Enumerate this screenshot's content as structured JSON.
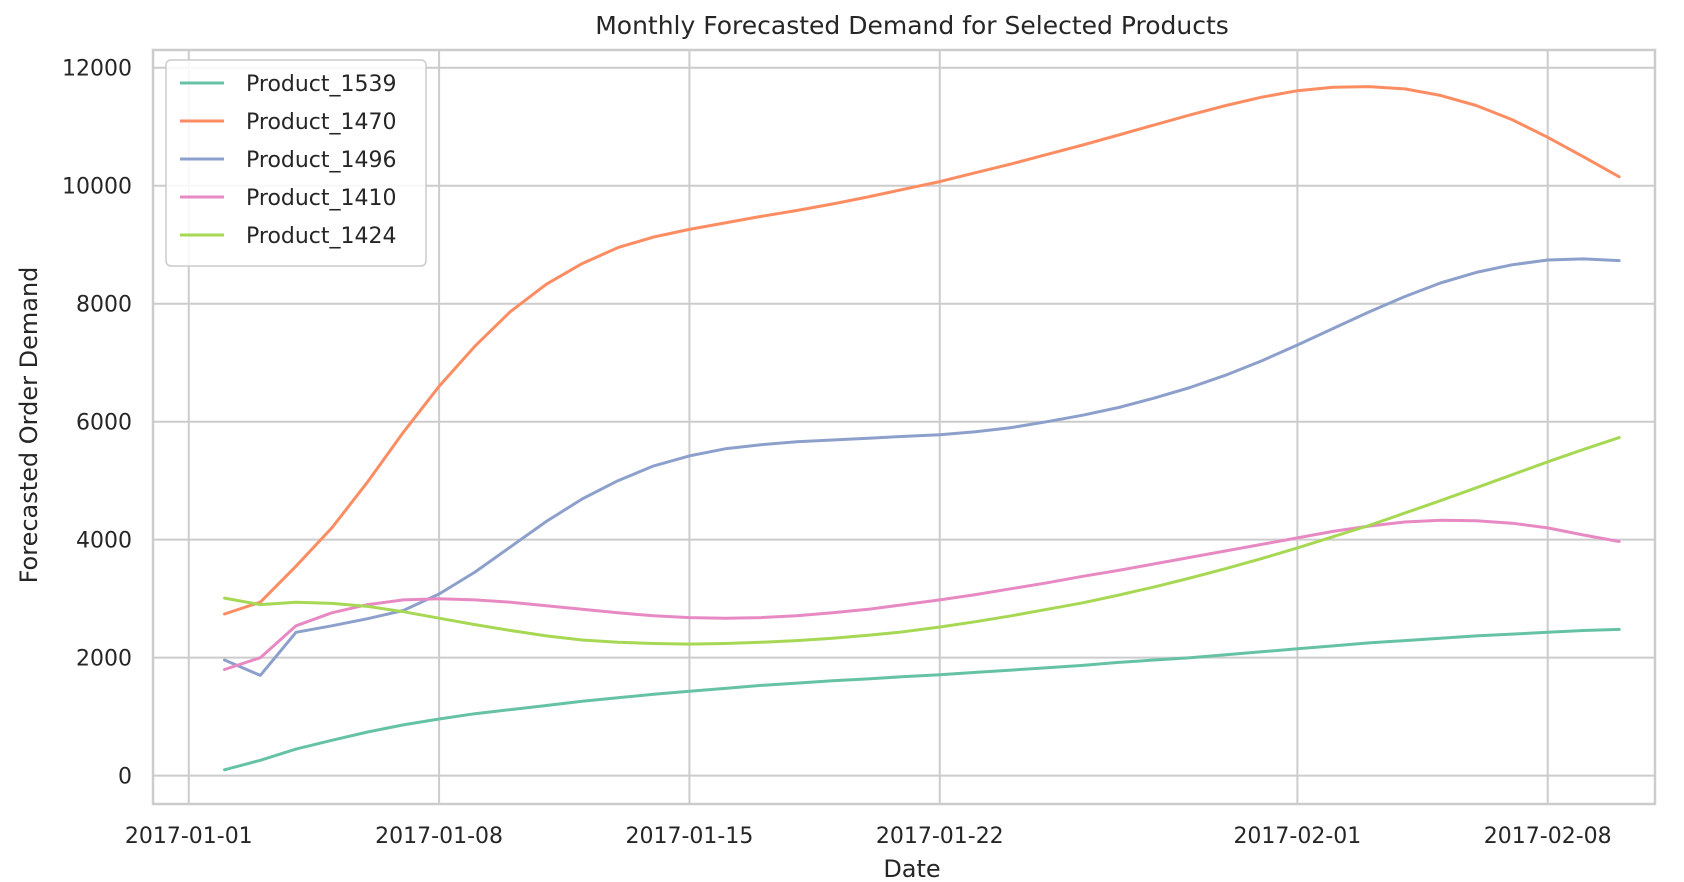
{
  "chart_data": {
    "type": "line",
    "title": "Monthly Forecasted Demand for Selected Products",
    "xlabel": "Date",
    "ylabel": "Forecasted Order Demand",
    "xlim": [
      "2016-12-31",
      "2017-02-11"
    ],
    "ylim": [
      -480,
      12300
    ],
    "grid": true,
    "legend_position": "upper-left",
    "x_ticks": [
      "2017-01-01",
      "2017-01-08",
      "2017-01-15",
      "2017-01-22",
      "2017-02-01",
      "2017-02-08"
    ],
    "y_ticks": [
      0,
      2000,
      4000,
      6000,
      8000,
      10000,
      12000
    ],
    "x": [
      "2017-01-02",
      "2017-01-03",
      "2017-01-04",
      "2017-01-05",
      "2017-01-06",
      "2017-01-07",
      "2017-01-08",
      "2017-01-09",
      "2017-01-10",
      "2017-01-11",
      "2017-01-12",
      "2017-01-13",
      "2017-01-14",
      "2017-01-15",
      "2017-01-16",
      "2017-01-17",
      "2017-01-18",
      "2017-01-19",
      "2017-01-20",
      "2017-01-21",
      "2017-01-22",
      "2017-01-23",
      "2017-01-24",
      "2017-01-25",
      "2017-01-26",
      "2017-01-27",
      "2017-01-28",
      "2017-01-29",
      "2017-01-30",
      "2017-01-31",
      "2017-02-01",
      "2017-02-02",
      "2017-02-03",
      "2017-02-04",
      "2017-02-05",
      "2017-02-06",
      "2017-02-07",
      "2017-02-08",
      "2017-02-09",
      "2017-02-10"
    ],
    "series": [
      {
        "name": "Product_1539",
        "color": "#66c2a5",
        "values": [
          100,
          260,
          450,
          600,
          740,
          860,
          960,
          1050,
          1120,
          1190,
          1260,
          1320,
          1380,
          1430,
          1480,
          1530,
          1570,
          1610,
          1640,
          1680,
          1710,
          1750,
          1790,
          1830,
          1870,
          1920,
          1960,
          2000,
          2050,
          2100,
          2150,
          2200,
          2250,
          2290,
          2330,
          2370,
          2400,
          2430,
          2460,
          2480
        ]
      },
      {
        "name": "Product_1470",
        "color": "#fc8d62",
        "values": [
          2740,
          2940,
          3550,
          4200,
          4980,
          5820,
          6600,
          7280,
          7870,
          8330,
          8680,
          8950,
          9130,
          9260,
          9370,
          9480,
          9580,
          9690,
          9810,
          9940,
          10070,
          10220,
          10370,
          10530,
          10690,
          10860,
          11030,
          11200,
          11360,
          11500,
          11610,
          11670,
          11680,
          11640,
          11530,
          11360,
          11120,
          10820,
          10490,
          10150
        ]
      },
      {
        "name": "Product_1496",
        "color": "#8da0cb",
        "values": [
          1960,
          1700,
          2430,
          2540,
          2660,
          2800,
          3080,
          3450,
          3880,
          4310,
          4690,
          5000,
          5250,
          5420,
          5540,
          5610,
          5660,
          5690,
          5720,
          5750,
          5780,
          5830,
          5900,
          6000,
          6110,
          6240,
          6400,
          6580,
          6790,
          7030,
          7300,
          7580,
          7860,
          8120,
          8350,
          8530,
          8660,
          8740,
          8760,
          8730
        ]
      },
      {
        "name": "Product_1410",
        "color": "#e78ac3",
        "values": [
          1800,
          2000,
          2540,
          2760,
          2900,
          2980,
          3000,
          2980,
          2940,
          2880,
          2820,
          2760,
          2710,
          2680,
          2670,
          2680,
          2710,
          2760,
          2820,
          2900,
          2980,
          3070,
          3170,
          3270,
          3380,
          3480,
          3590,
          3700,
          3810,
          3920,
          4030,
          4140,
          4230,
          4300,
          4330,
          4320,
          4280,
          4200,
          4080,
          3970
        ]
      },
      {
        "name": "Product_1424",
        "color": "#a6d854",
        "values": [
          3010,
          2900,
          2940,
          2920,
          2870,
          2780,
          2670,
          2560,
          2460,
          2370,
          2300,
          2260,
          2240,
          2230,
          2240,
          2260,
          2290,
          2330,
          2380,
          2440,
          2520,
          2610,
          2710,
          2820,
          2930,
          3060,
          3200,
          3350,
          3510,
          3680,
          3860,
          4050,
          4240,
          4450,
          4660,
          4880,
          5100,
          5320,
          5530,
          5730
        ]
      }
    ]
  }
}
